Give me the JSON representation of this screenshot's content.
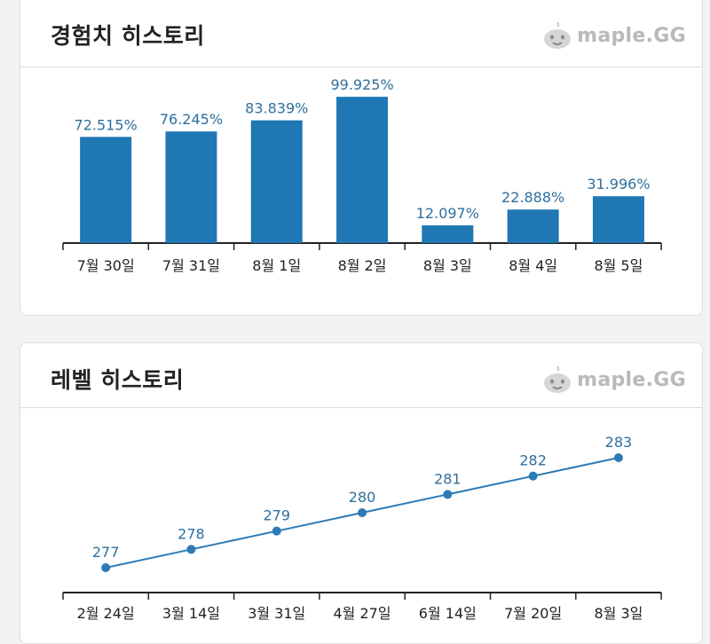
{
  "brand": {
    "text": "maple.GG",
    "icon": "slime-mascot-icon"
  },
  "colors": {
    "bar": "#1f77b4",
    "line": "#2c7bb6",
    "label": "#2f6f9e",
    "axis": "#222222"
  },
  "exp_history": {
    "title": "경험치 히스토리",
    "chart_data": {
      "type": "bar",
      "categories": [
        "7월 30일",
        "7월 31일",
        "8월 1일",
        "8월 2일",
        "8월 3일",
        "8월 4일",
        "8월 5일"
      ],
      "values": [
        72.515,
        76.245,
        83.839,
        99.925,
        12.097,
        22.888,
        31.996
      ],
      "value_labels": [
        "72.515%",
        "76.245%",
        "83.839%",
        "99.925%",
        "12.097%",
        "22.888%",
        "31.996%"
      ],
      "ylim": [
        0,
        100
      ]
    }
  },
  "level_history": {
    "title": "레벨 히스토리",
    "chart_data": {
      "type": "line",
      "categories": [
        "2월 24일",
        "3월 14일",
        "3월 31일",
        "4월 27일",
        "6월 14일",
        "7월 20일",
        "8월 3일"
      ],
      "values": [
        277,
        278,
        279,
        280,
        281,
        282,
        283
      ],
      "value_labels": [
        "277",
        "278",
        "279",
        "280",
        "281",
        "282",
        "283"
      ]
    }
  }
}
